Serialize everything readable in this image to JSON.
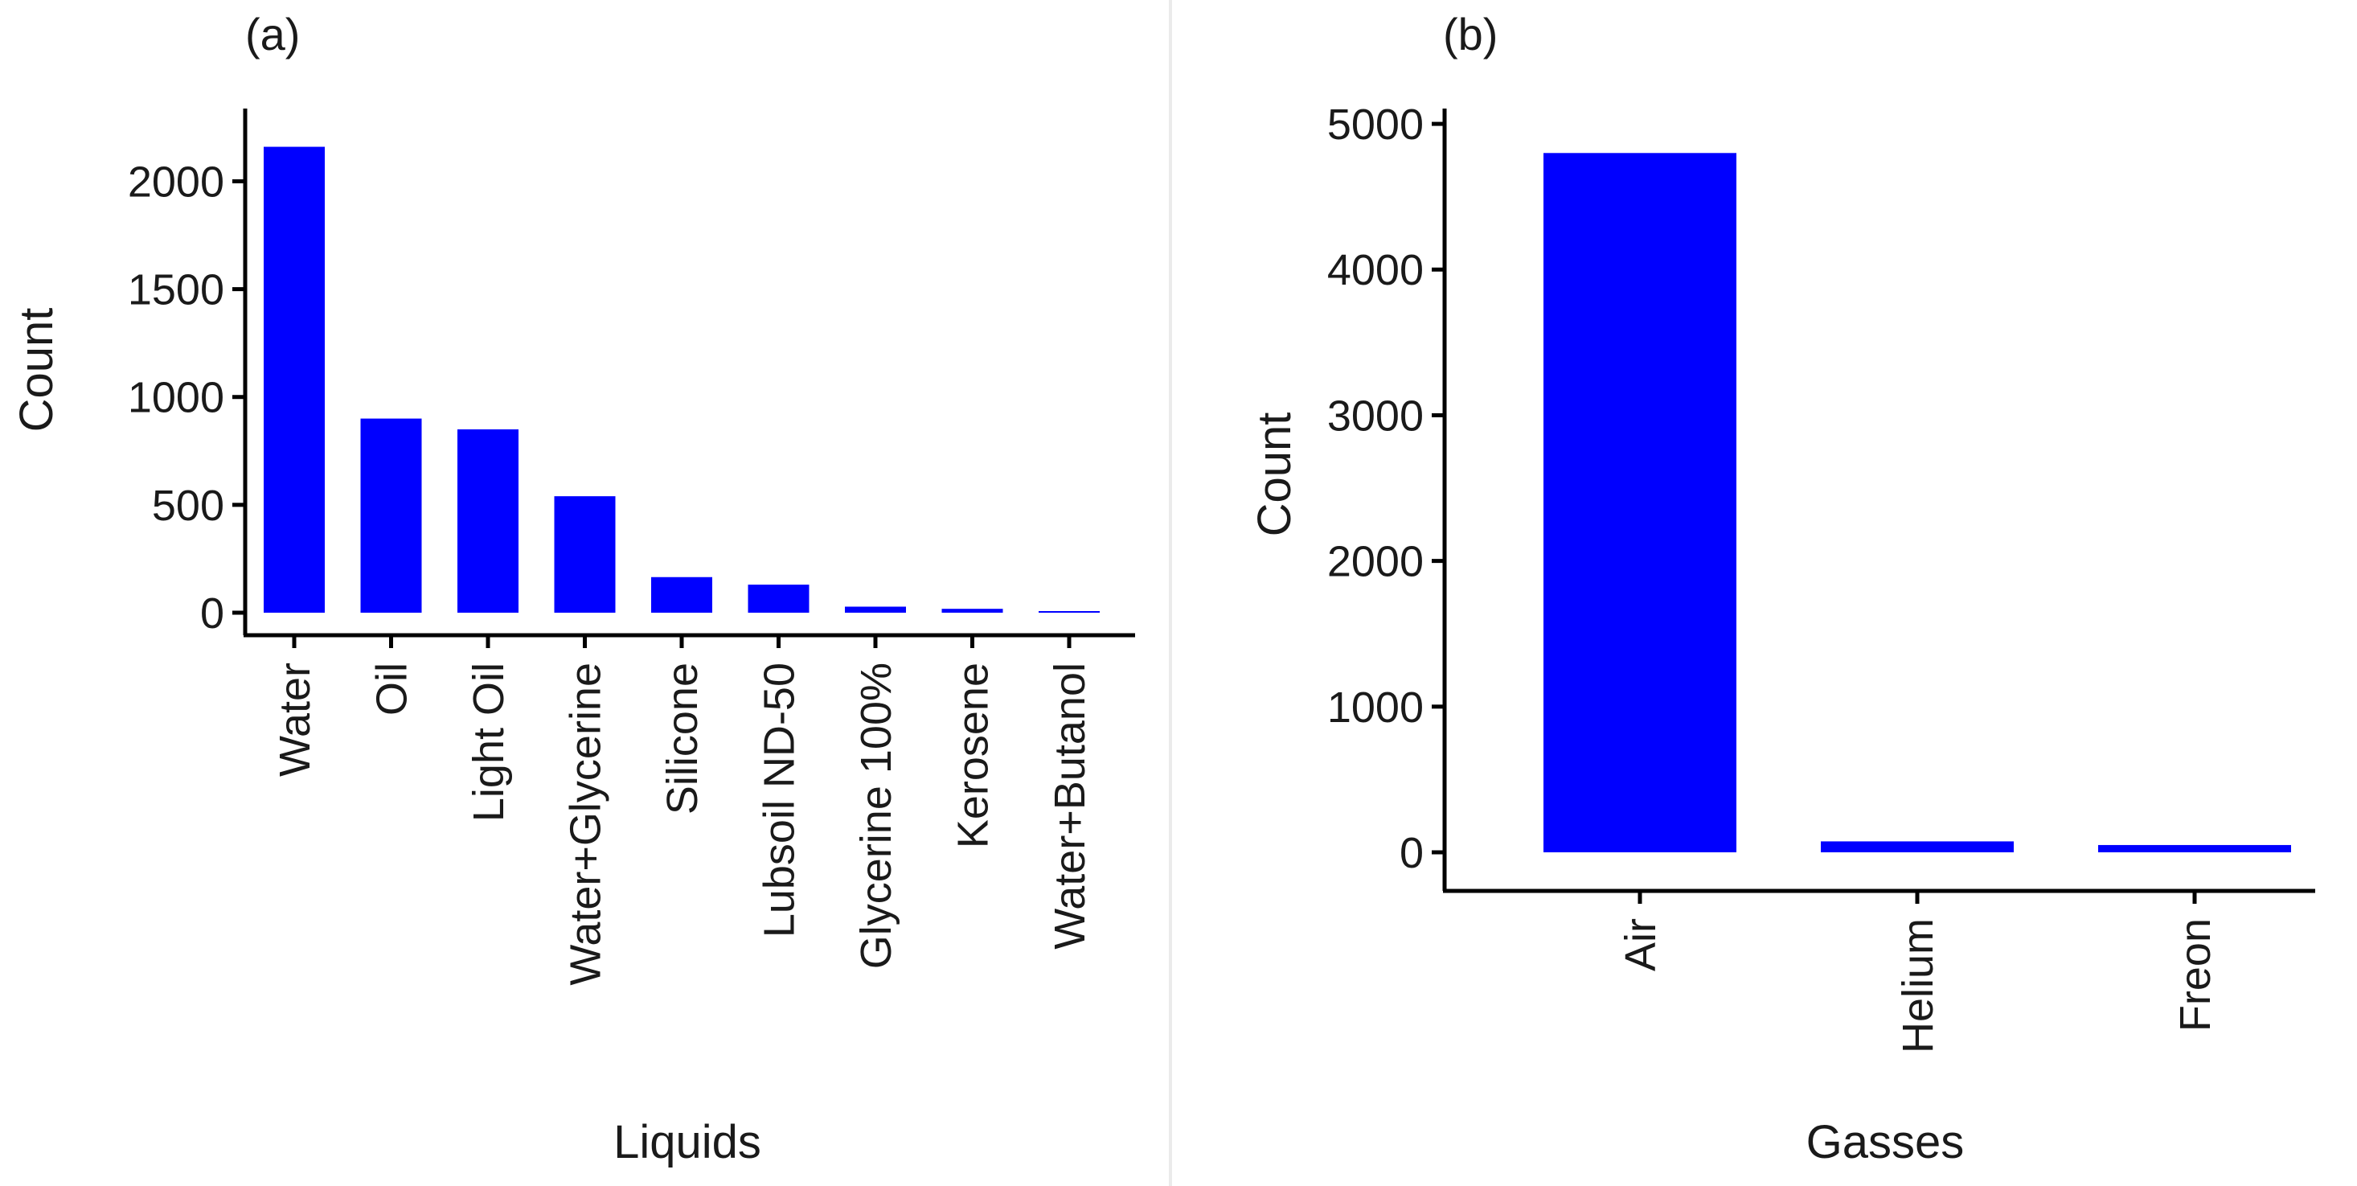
{
  "chart_data": [
    {
      "type": "bar",
      "panel_label": "(a)",
      "title": "",
      "xlabel": "Liquids",
      "ylabel": "Count",
      "ylim": [
        0,
        2300
      ],
      "yticks": [
        0,
        500,
        1000,
        1500,
        2000
      ],
      "ytick_labels": [
        "0",
        "500",
        "1000",
        "1500",
        "2000"
      ],
      "categories": [
        "Water",
        "Oil",
        "Light Oil",
        "Water+Glycerine",
        "Silicone",
        "Lubsoil ND-50",
        "Glycerine 100%",
        "Kerosene",
        "Water+Butanol"
      ],
      "values": [
        2160,
        900,
        850,
        540,
        165,
        130,
        28,
        18,
        3
      ],
      "bar_color": "#0000ff"
    },
    {
      "type": "bar",
      "panel_label": "(b)",
      "title": "",
      "xlabel": "Gasses",
      "ylabel": "Count",
      "ylim": [
        0,
        5050
      ],
      "yticks": [
        0,
        1000,
        2000,
        3000,
        4000,
        5000
      ],
      "ytick_labels": [
        "0",
        "1000",
        "2000",
        "3000",
        "4000",
        "5000"
      ],
      "categories": [
        "Air",
        "Helium",
        "Freon"
      ],
      "values": [
        4800,
        75,
        50
      ],
      "bar_color": "#0000ff"
    }
  ]
}
